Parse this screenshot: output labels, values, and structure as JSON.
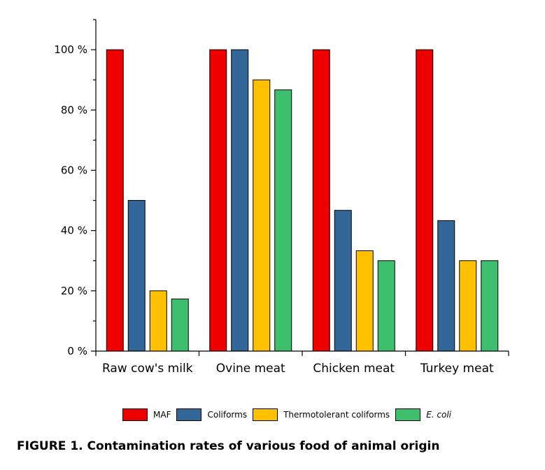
{
  "chart_data": {
    "type": "bar",
    "categories": [
      "Raw cow's milk",
      "Ovine meat",
      "Chicken meat",
      "Turkey meat"
    ],
    "series": [
      {
        "name": "MAF",
        "color": "#ee0000",
        "values": [
          100,
          100,
          100,
          100
        ]
      },
      {
        "name": "Coliforms",
        "color": "#336699",
        "values": [
          50,
          100,
          46.7,
          43.3
        ]
      },
      {
        "name": "Thermotolerant coliforms",
        "color": "#ffc000",
        "values": [
          20,
          90,
          33.3,
          30
        ]
      },
      {
        "name": "E. coli",
        "color": "#3dbf6e",
        "values": [
          17.3,
          86.7,
          30,
          30
        ]
      }
    ],
    "yticks": [
      "0 %",
      "20 %",
      "40 %",
      "60 %",
      "80 %",
      "100 %"
    ],
    "ylim": [
      0,
      110
    ],
    "legend_position": "bottom",
    "grid": false
  },
  "caption": "FIGURE 1. Contamination rates of various food of animal origin"
}
